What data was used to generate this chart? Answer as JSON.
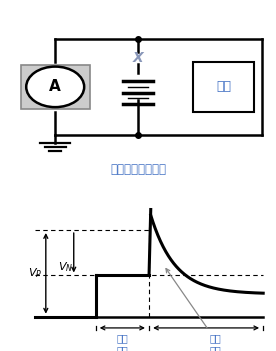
{
  "title_circuit": "发电机的输出电压",
  "label_battery_connect": "电池\n连接",
  "label_battery_disconnect": "电池\n断开",
  "label_load": "负载",
  "label_A": "A",
  "label_X": "X",
  "bg_color": "#ffffff",
  "line_color": "#000000",
  "text_color_blue": "#4472c4",
  "circuit_title_color": "#4472c4",
  "gray_color": "#888888",
  "light_gray": "#cccccc",
  "x_color": "#8896b8"
}
